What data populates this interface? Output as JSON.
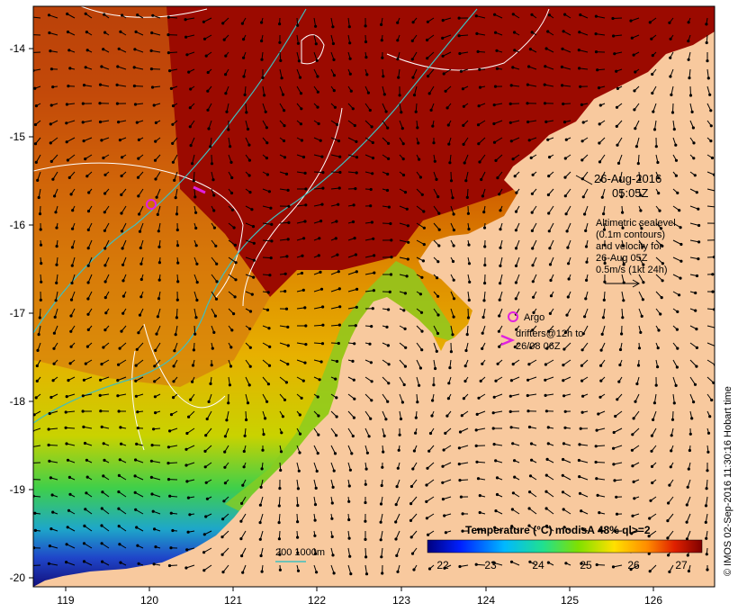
{
  "map": {
    "x_ticks": [
      "119",
      "120",
      "121",
      "122",
      "123",
      "124",
      "125",
      "126"
    ],
    "y_ticks": [
      "-14",
      "-15",
      "-16",
      "-17",
      "-18",
      "-19",
      "-20"
    ],
    "timestamp_date": "26-Aug-2016",
    "timestamp_time": "05:05Z",
    "altimetry_legend": [
      "Altimetric sealevel",
      "(0.1m contours)",
      "and velocity for",
      "26-Aug 05Z",
      "0.5m/s (1kt 24h)"
    ],
    "argo_label": "Argo",
    "drifters_label_1": "drifters@12h to",
    "drifters_label_2": "26/08 06Z",
    "bathymetry_label": "200  1000m",
    "colorbar_title": "Temperature (°C) modisA 48% ql>=2",
    "colorbar_ticks": [
      "22",
      "23",
      "24",
      "25",
      "26",
      "27"
    ],
    "credit": "© IMOS 02-Sep-2016 11:30:16 Hobart time",
    "colors": {
      "land": "#f8c99e",
      "hot": "#9b0a00",
      "bathymetry": "#3fbfbf",
      "argo": "#e020e0"
    }
  }
}
